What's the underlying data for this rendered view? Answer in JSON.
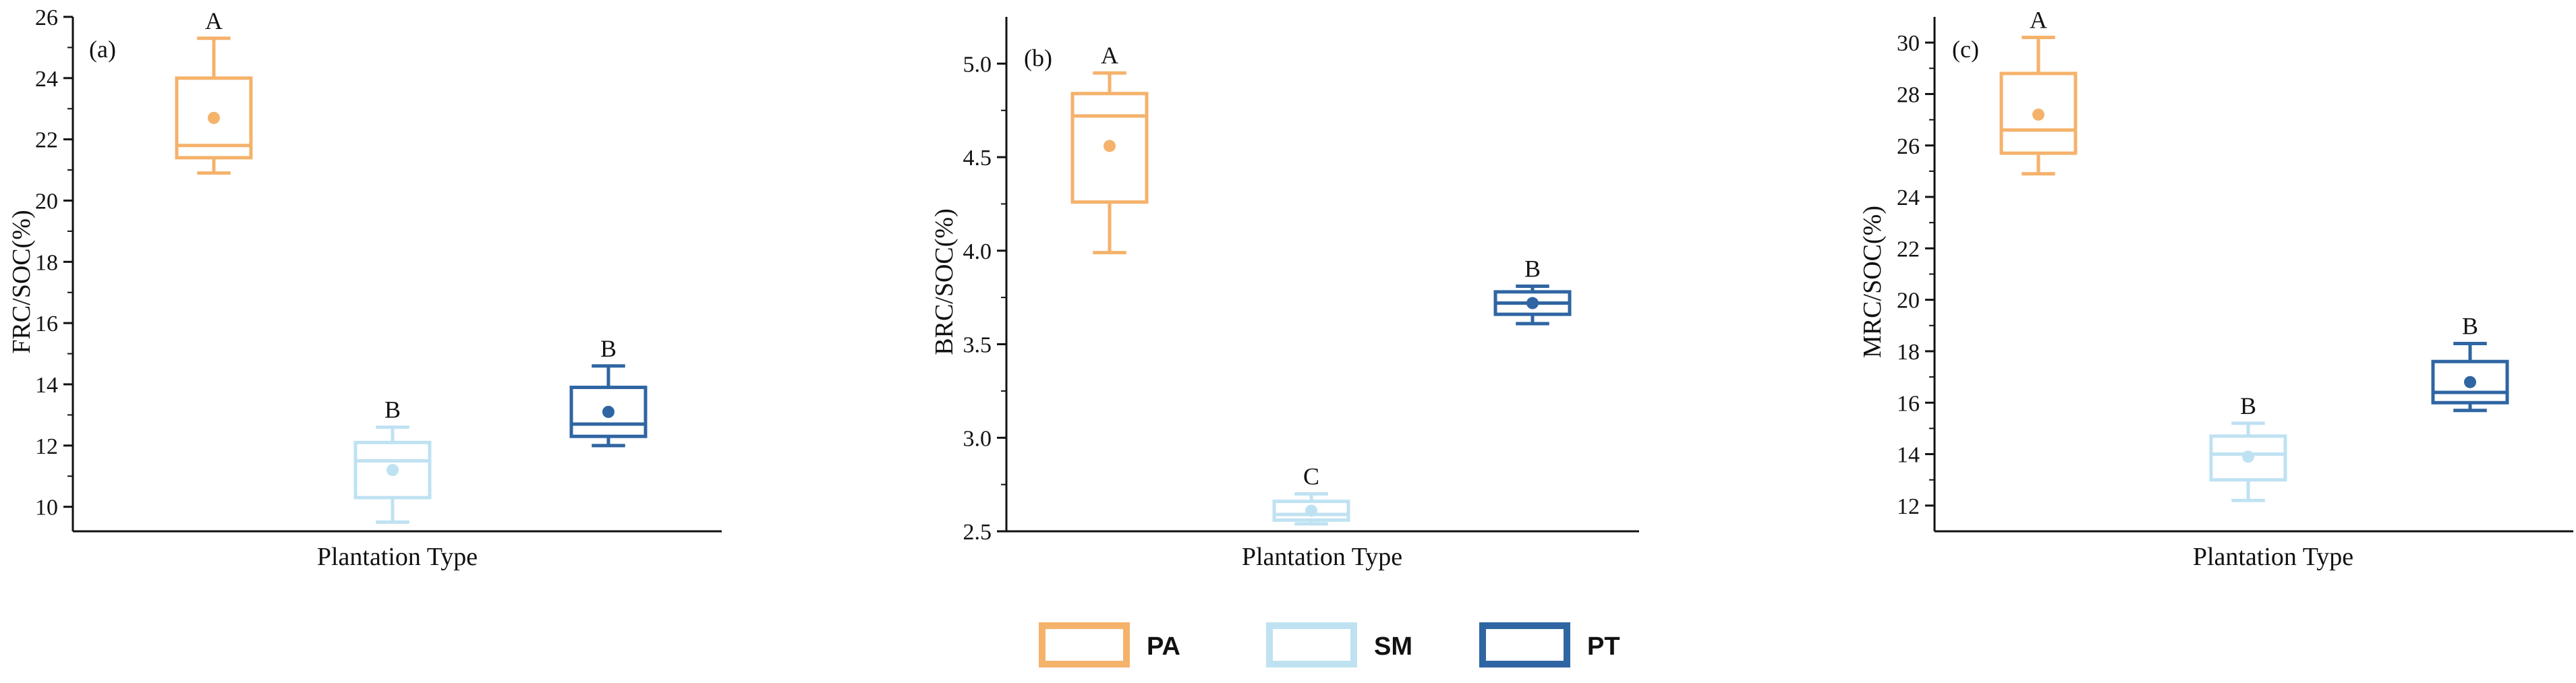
{
  "colors": {
    "PA": "#F5B26B",
    "SM": "#BFE2F2",
    "PT": "#2F65A2",
    "axis": "#111111"
  },
  "legend": [
    {
      "key": "PA",
      "label": "PA"
    },
    {
      "key": "SM",
      "label": "SM"
    },
    {
      "key": "PT",
      "label": "PT"
    }
  ],
  "chart_data": [
    {
      "type": "box",
      "panel_label": "(a)",
      "title": "",
      "xlabel": "Plantation Type",
      "ylabel": "FRC/SOC(%)",
      "ylim": [
        9.2,
        26
      ],
      "yticks": [
        10,
        12,
        14,
        16,
        18,
        20,
        22,
        24,
        26
      ],
      "series": [
        {
          "name": "PA",
          "min": 20.9,
          "q1": 21.4,
          "median": 21.8,
          "q3": 24.0,
          "max": 25.3,
          "mean": 22.7,
          "letter": "A"
        },
        {
          "name": "SM",
          "min": 9.5,
          "q1": 10.3,
          "median": 11.5,
          "q3": 12.1,
          "max": 12.6,
          "mean": 11.2,
          "letter": "B"
        },
        {
          "name": "PT",
          "min": 12.0,
          "q1": 12.3,
          "median": 12.7,
          "q3": 13.9,
          "max": 14.6,
          "mean": 13.1,
          "letter": "B"
        }
      ]
    },
    {
      "type": "box",
      "panel_label": "(b)",
      "title": "",
      "xlabel": "Plantation Type",
      "ylabel": "BRC/SOC(%)",
      "ylim": [
        2.5,
        5.25
      ],
      "yticks": [
        2.5,
        3.0,
        3.5,
        4.0,
        4.5,
        5.0
      ],
      "ytick_labels": [
        "2.5",
        "3.0",
        "3.5",
        "4.0",
        "4.5",
        "5.0"
      ],
      "series": [
        {
          "name": "PA",
          "min": 3.99,
          "q1": 4.26,
          "median": 4.72,
          "q3": 4.84,
          "max": 4.95,
          "mean": 4.56,
          "letter": "A"
        },
        {
          "name": "SM",
          "min": 2.54,
          "q1": 2.56,
          "median": 2.59,
          "q3": 2.66,
          "max": 2.7,
          "mean": 2.61,
          "letter": "C"
        },
        {
          "name": "PT",
          "min": 3.61,
          "q1": 3.66,
          "median": 3.72,
          "q3": 3.78,
          "max": 3.81,
          "mean": 3.72,
          "letter": "B"
        }
      ]
    },
    {
      "type": "box",
      "panel_label": "(c)",
      "title": "",
      "xlabel": "Plantation Type",
      "ylabel": "MRC/SOC(%)",
      "ylim": [
        11,
        31
      ],
      "yticks": [
        12,
        14,
        16,
        18,
        20,
        22,
        24,
        26,
        28,
        30
      ],
      "series": [
        {
          "name": "PA",
          "min": 24.9,
          "q1": 25.7,
          "median": 26.6,
          "q3": 28.8,
          "max": 30.2,
          "mean": 27.2,
          "letter": "A"
        },
        {
          "name": "SM",
          "min": 12.2,
          "q1": 13.0,
          "median": 14.0,
          "q3": 14.7,
          "max": 15.2,
          "mean": 13.9,
          "letter": "B"
        },
        {
          "name": "PT",
          "min": 15.7,
          "q1": 16.0,
          "median": 16.4,
          "q3": 17.6,
          "max": 18.3,
          "mean": 16.8,
          "letter": "B"
        }
      ]
    }
  ]
}
